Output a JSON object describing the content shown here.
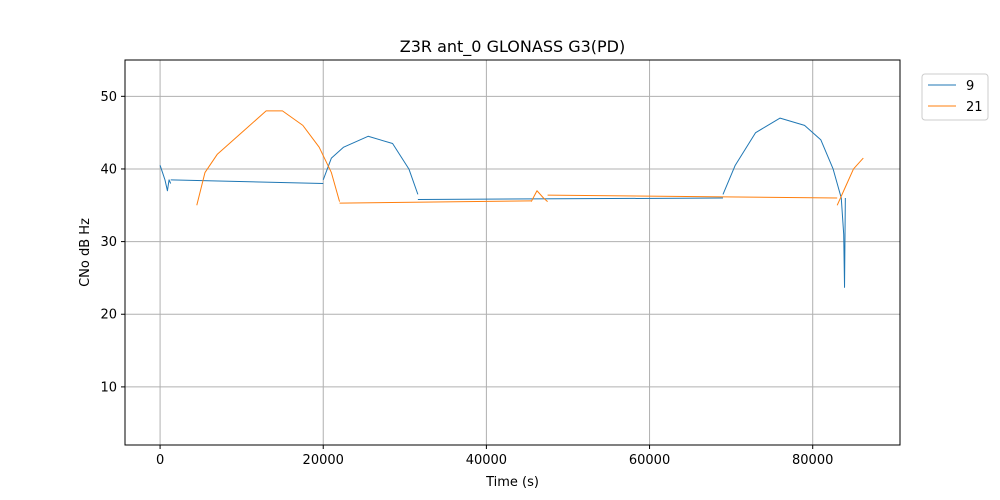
{
  "chart_data": {
    "type": "line",
    "title": "Z3R ant_0 GLONASS G3(PD)",
    "xlabel": "Time (s)",
    "ylabel": "CNo dB Hz",
    "xlim": [
      -4300,
      90700
    ],
    "ylim": [
      2,
      55
    ],
    "xticks": [
      0,
      20000,
      40000,
      60000,
      80000
    ],
    "yticks": [
      10,
      20,
      30,
      40,
      50
    ],
    "grid": true,
    "legend_position": "outside-top-right",
    "series": [
      {
        "name": "9",
        "color": "#1f77b4",
        "segments": [
          [
            [
              0,
              40.5
            ],
            [
              300,
              39.5
            ],
            [
              600,
              38.5
            ],
            [
              900,
              37.0
            ],
            [
              1100,
              38.5
            ],
            [
              1300,
              38.0
            ]
          ],
          [
            [
              1300,
              38.5
            ],
            [
              20000,
              38.0
            ]
          ],
          [
            [
              20000,
              38.5
            ],
            [
              21000,
              41.5
            ],
            [
              22500,
              43.0
            ],
            [
              25500,
              44.5
            ],
            [
              28500,
              43.5
            ],
            [
              30500,
              40.0
            ],
            [
              31600,
              36.5
            ]
          ],
          [
            [
              31600,
              35.8
            ],
            [
              69000,
              36.0
            ]
          ],
          [
            [
              69000,
              36.5
            ],
            [
              70500,
              40.5
            ],
            [
              73000,
              45.0
            ],
            [
              76000,
              47.0
            ],
            [
              79000,
              46.0
            ],
            [
              81000,
              44.0
            ],
            [
              82500,
              40.0
            ],
            [
              83500,
              36.0
            ],
            [
              83800,
              31.0
            ],
            [
              83900,
              23.7
            ],
            [
              84000,
              36.0
            ]
          ]
        ]
      },
      {
        "name": "21",
        "color": "#ff7f0e",
        "segments": [
          [
            [
              4500,
              35.0
            ],
            [
              5500,
              39.5
            ],
            [
              7000,
              42.0
            ],
            [
              10000,
              45.0
            ],
            [
              13000,
              48.0
            ],
            [
              15000,
              48.0
            ],
            [
              17500,
              46.0
            ],
            [
              19500,
              43.0
            ],
            [
              21000,
              39.5
            ],
            [
              22000,
              35.5
            ]
          ],
          [
            [
              22000,
              35.3
            ],
            [
              45500,
              35.6
            ]
          ],
          [
            [
              45500,
              35.5
            ],
            [
              46200,
              37.0
            ],
            [
              47000,
              36.0
            ],
            [
              47500,
              35.5
            ]
          ],
          [
            [
              47500,
              36.4
            ],
            [
              83000,
              36.0
            ]
          ],
          [
            [
              83000,
              35.0
            ],
            [
              84000,
              37.5
            ],
            [
              85000,
              40.0
            ],
            [
              86200,
              41.5
            ]
          ]
        ]
      }
    ]
  }
}
